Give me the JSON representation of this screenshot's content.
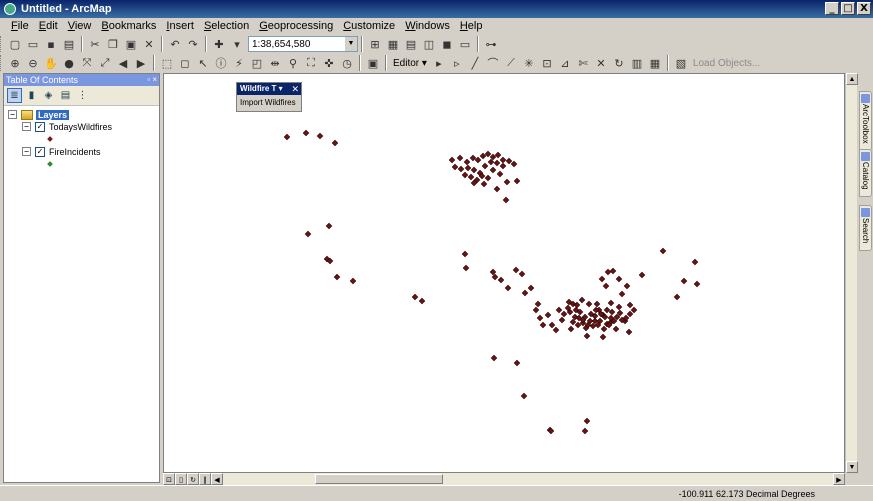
{
  "window": {
    "title": "Untitled - ArcMap",
    "min_label": "_",
    "max_label": "□",
    "close_label": "X"
  },
  "menu": {
    "items": [
      "File",
      "Edit",
      "View",
      "Bookmarks",
      "Insert",
      "Selection",
      "Geoprocessing",
      "Customize",
      "Windows",
      "Help"
    ]
  },
  "toolbar": {
    "scale_value": "1:38,654,580",
    "editor_label": "Editor ▾",
    "load_objects_label": "Load Objects..."
  },
  "toc": {
    "title": "Table Of Contents",
    "header_buttons": "▫ ×",
    "root_label": "Layers",
    "layers": [
      {
        "name": "TodaysWildfires",
        "checked": "✓",
        "symbol_color": "#7a1b1b"
      },
      {
        "name": "FireIncidents",
        "checked": "✓",
        "symbol_color": "#2e8b2e"
      }
    ]
  },
  "wildfire_toolbar": {
    "title": "Wildfire T ▾",
    "close_label": "✕",
    "button_label": "Import Wildfires"
  },
  "side_tabs": [
    {
      "label": "ArcToolbox"
    },
    {
      "label": "Catalog"
    },
    {
      "label": "Search"
    }
  ],
  "status": {
    "coords": "-100.911  62.173 Decimal Degrees"
  },
  "map": {
    "point_color": "#6b1414",
    "point_stroke": "#2a0505"
  }
}
